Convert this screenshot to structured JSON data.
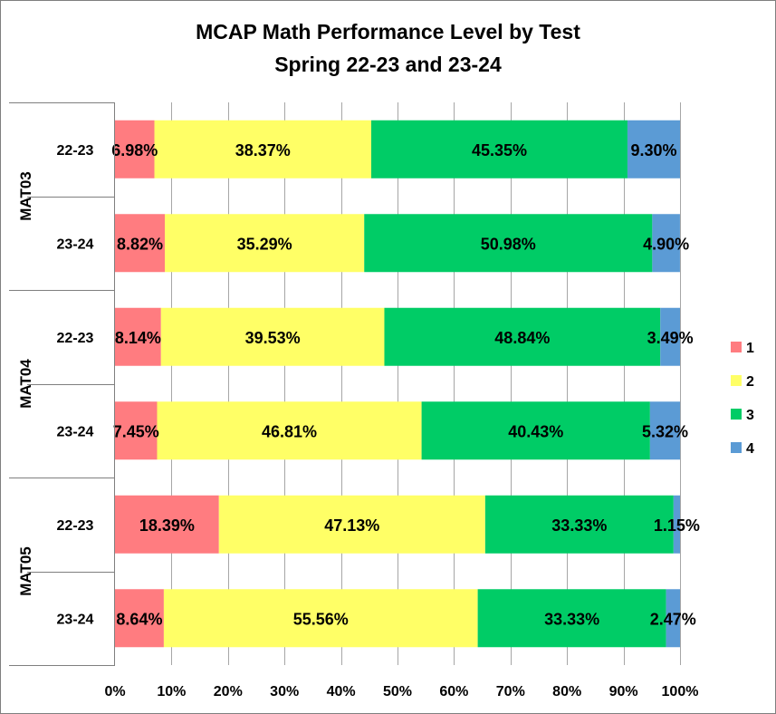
{
  "chart_data": {
    "type": "bar",
    "orientation": "horizontal",
    "stacked": "percent",
    "title": "MCAP Math Performance Level by Test",
    "subtitle": "Spring 22-23 and 23-24",
    "groups": [
      {
        "name": "MAT03",
        "rows": [
          {
            "label": "22-23",
            "values": [
              6.98,
              38.37,
              45.35,
              9.3
            ]
          },
          {
            "label": "23-24",
            "values": [
              8.82,
              35.29,
              50.98,
              4.9
            ]
          }
        ]
      },
      {
        "name": "MAT04",
        "rows": [
          {
            "label": "22-23",
            "values": [
              8.14,
              39.53,
              48.84,
              3.49
            ]
          },
          {
            "label": "23-24",
            "values": [
              7.45,
              46.81,
              40.43,
              5.32
            ]
          }
        ]
      },
      {
        "name": "MAT05",
        "rows": [
          {
            "label": "22-23",
            "values": [
              18.39,
              47.13,
              33.33,
              1.15
            ]
          },
          {
            "label": "23-24",
            "values": [
              8.64,
              55.56,
              33.33,
              2.47
            ]
          }
        ]
      }
    ],
    "series": [
      {
        "name": "1",
        "color": "#ff7c80"
      },
      {
        "name": "2",
        "color": "#ffff66"
      },
      {
        "name": "3",
        "color": "#00cc66"
      },
      {
        "name": "4",
        "color": "#5b9bd5"
      }
    ],
    "xlim": [
      0,
      100
    ],
    "x_ticks": [
      "0%",
      "10%",
      "20%",
      "30%",
      "40%",
      "50%",
      "60%",
      "70%",
      "80%",
      "90%",
      "100%"
    ],
    "grid": true,
    "legend": "right"
  }
}
